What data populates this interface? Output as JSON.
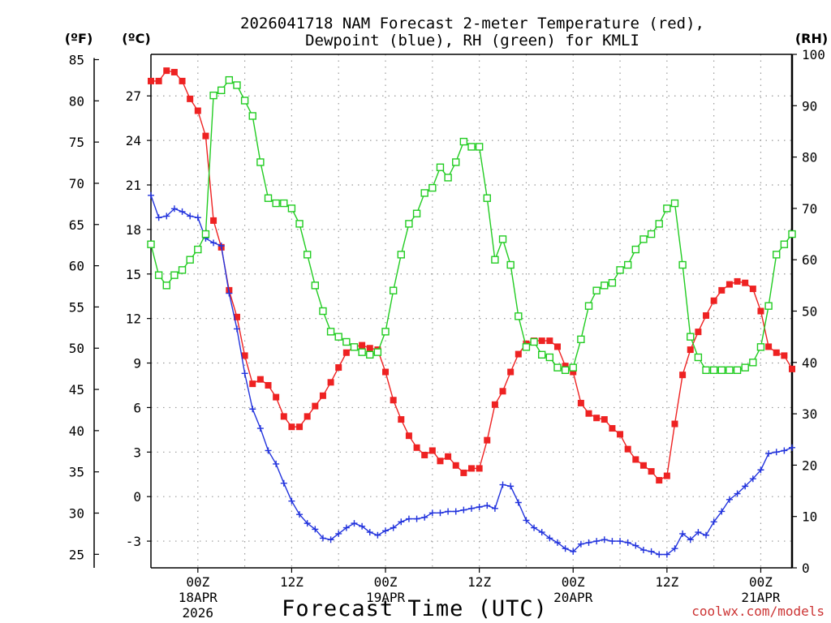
{
  "chart_data": {
    "type": "line",
    "title_line1": "2026041718 NAM Forecast 2-meter Temperature (red),",
    "title_line2": "Dewpoint (blue), RH (green) for KMLI",
    "xlabel": "Forecast Time (UTC)",
    "credit": "coolwx.com/models",
    "units": {
      "fahrenheit": "(ºF)",
      "celsius": "(ºC)",
      "rh": "(RH)"
    },
    "x_hours_range": [
      0,
      82
    ],
    "celsius_range": [
      -4.8,
      29.8
    ],
    "rh_range": [
      0,
      100
    ],
    "fahrenheit_ticks": [
      25,
      30,
      35,
      40,
      45,
      50,
      55,
      60,
      65,
      70,
      75,
      80,
      85
    ],
    "celsius_ticks": [
      -3,
      0,
      3,
      6,
      9,
      12,
      15,
      18,
      21,
      24,
      27
    ],
    "rh_ticks": [
      0,
      10,
      20,
      30,
      40,
      50,
      60,
      70,
      80,
      90,
      100
    ],
    "x_ticks": [
      {
        "hour": 6,
        "label": "00Z",
        "date": "18APR",
        "year": "2026"
      },
      {
        "hour": 18,
        "label": "12Z"
      },
      {
        "hour": 30,
        "label": "00Z",
        "date": "19APR"
      },
      {
        "hour": 42,
        "label": "12Z"
      },
      {
        "hour": 54,
        "label": "00Z",
        "date": "20APR"
      },
      {
        "hour": 66,
        "label": "12Z"
      },
      {
        "hour": 78,
        "label": "00Z",
        "date": "21APR"
      }
    ],
    "series": [
      {
        "name": "2-meter Temperature",
        "unit": "°C",
        "color": "#ee2222",
        "marker": "filled-square",
        "values": [
          [
            0,
            28.0
          ],
          [
            1,
            28.0
          ],
          [
            2,
            28.7
          ],
          [
            3,
            28.6
          ],
          [
            4,
            28.0
          ],
          [
            5,
            26.8
          ],
          [
            6,
            26.0
          ],
          [
            7,
            24.3
          ],
          [
            8,
            18.6
          ],
          [
            9,
            16.8
          ],
          [
            10,
            13.9
          ],
          [
            11,
            12.1
          ],
          [
            12,
            9.5
          ],
          [
            13,
            7.6
          ],
          [
            14,
            7.9
          ],
          [
            15,
            7.5
          ],
          [
            16,
            6.7
          ],
          [
            17,
            5.4
          ],
          [
            18,
            4.7
          ],
          [
            19,
            4.7
          ],
          [
            20,
            5.4
          ],
          [
            21,
            6.1
          ],
          [
            22,
            6.8
          ],
          [
            23,
            7.7
          ],
          [
            24,
            8.7
          ],
          [
            25,
            9.7
          ],
          [
            26,
            10.1
          ],
          [
            27,
            10.2
          ],
          [
            28,
            10.0
          ],
          [
            29,
            9.9
          ],
          [
            30,
            8.4
          ],
          [
            31,
            6.5
          ],
          [
            32,
            5.2
          ],
          [
            33,
            4.1
          ],
          [
            34,
            3.3
          ],
          [
            35,
            2.8
          ],
          [
            36,
            3.1
          ],
          [
            37,
            2.4
          ],
          [
            38,
            2.7
          ],
          [
            39,
            2.1
          ],
          [
            40,
            1.6
          ],
          [
            41,
            1.9
          ],
          [
            42,
            1.9
          ],
          [
            43,
            3.8
          ],
          [
            44,
            6.2
          ],
          [
            45,
            7.1
          ],
          [
            46,
            8.4
          ],
          [
            47,
            9.6
          ],
          [
            48,
            10.3
          ],
          [
            49,
            10.5
          ],
          [
            50,
            10.5
          ],
          [
            51,
            10.5
          ],
          [
            52,
            10.1
          ],
          [
            53,
            8.8
          ],
          [
            54,
            8.4
          ],
          [
            55,
            6.3
          ],
          [
            56,
            5.6
          ],
          [
            57,
            5.3
          ],
          [
            58,
            5.2
          ],
          [
            59,
            4.6
          ],
          [
            60,
            4.2
          ],
          [
            61,
            3.2
          ],
          [
            62,
            2.5
          ],
          [
            63,
            2.1
          ],
          [
            64,
            1.7
          ],
          [
            65,
            1.1
          ],
          [
            66,
            1.4
          ],
          [
            67,
            4.9
          ],
          [
            68,
            8.2
          ],
          [
            69,
            9.9
          ],
          [
            70,
            11.1
          ],
          [
            71,
            12.2
          ],
          [
            72,
            13.2
          ],
          [
            73,
            13.9
          ],
          [
            74,
            14.3
          ],
          [
            75,
            14.5
          ],
          [
            76,
            14.4
          ],
          [
            77,
            14.0
          ],
          [
            78,
            12.5
          ],
          [
            79,
            10.1
          ],
          [
            80,
            9.7
          ],
          [
            81,
            9.5
          ],
          [
            82,
            8.6
          ]
        ]
      },
      {
        "name": "Dewpoint",
        "unit": "°C",
        "color": "#2233dd",
        "marker": "plus",
        "values": [
          [
            0,
            20.3
          ],
          [
            1,
            18.8
          ],
          [
            2,
            18.9
          ],
          [
            3,
            19.4
          ],
          [
            4,
            19.2
          ],
          [
            5,
            18.9
          ],
          [
            6,
            18.8
          ],
          [
            7,
            17.4
          ],
          [
            8,
            17.1
          ],
          [
            9,
            16.9
          ],
          [
            10,
            13.7
          ],
          [
            11,
            11.3
          ],
          [
            12,
            8.3
          ],
          [
            13,
            5.9
          ],
          [
            14,
            4.6
          ],
          [
            15,
            3.1
          ],
          [
            16,
            2.2
          ],
          [
            17,
            0.9
          ],
          [
            18,
            -0.3
          ],
          [
            19,
            -1.2
          ],
          [
            20,
            -1.8
          ],
          [
            21,
            -2.2
          ],
          [
            22,
            -2.8
          ],
          [
            23,
            -2.9
          ],
          [
            24,
            -2.5
          ],
          [
            25,
            -2.1
          ],
          [
            26,
            -1.8
          ],
          [
            27,
            -2.0
          ],
          [
            28,
            -2.4
          ],
          [
            29,
            -2.6
          ],
          [
            30,
            -2.3
          ],
          [
            31,
            -2.1
          ],
          [
            32,
            -1.7
          ],
          [
            33,
            -1.5
          ],
          [
            34,
            -1.5
          ],
          [
            35,
            -1.4
          ],
          [
            36,
            -1.1
          ],
          [
            37,
            -1.1
          ],
          [
            38,
            -1.0
          ],
          [
            39,
            -1.0
          ],
          [
            40,
            -0.9
          ],
          [
            41,
            -0.8
          ],
          [
            42,
            -0.7
          ],
          [
            43,
            -0.6
          ],
          [
            44,
            -0.8
          ],
          [
            45,
            0.8
          ],
          [
            46,
            0.7
          ],
          [
            47,
            -0.4
          ],
          [
            48,
            -1.6
          ],
          [
            49,
            -2.1
          ],
          [
            50,
            -2.4
          ],
          [
            51,
            -2.8
          ],
          [
            52,
            -3.1
          ],
          [
            53,
            -3.5
          ],
          [
            54,
            -3.7
          ],
          [
            55,
            -3.2
          ],
          [
            56,
            -3.1
          ],
          [
            57,
            -3.0
          ],
          [
            58,
            -2.9
          ],
          [
            59,
            -3.0
          ],
          [
            60,
            -3.0
          ],
          [
            61,
            -3.1
          ],
          [
            62,
            -3.3
          ],
          [
            63,
            -3.6
          ],
          [
            64,
            -3.7
          ],
          [
            65,
            -3.9
          ],
          [
            66,
            -3.9
          ],
          [
            67,
            -3.5
          ],
          [
            68,
            -2.5
          ],
          [
            69,
            -2.9
          ],
          [
            70,
            -2.4
          ],
          [
            71,
            -2.6
          ],
          [
            72,
            -1.7
          ],
          [
            73,
            -1.0
          ],
          [
            74,
            -0.2
          ],
          [
            75,
            0.2
          ],
          [
            76,
            0.7
          ],
          [
            77,
            1.2
          ],
          [
            78,
            1.8
          ],
          [
            79,
            2.9
          ],
          [
            80,
            3.0
          ],
          [
            81,
            3.1
          ],
          [
            82,
            3.3
          ]
        ]
      },
      {
        "name": "Relative Humidity",
        "unit": "%",
        "color": "#22cc22",
        "marker": "open-square",
        "values": [
          [
            0,
            63
          ],
          [
            1,
            57
          ],
          [
            2,
            55
          ],
          [
            3,
            57
          ],
          [
            4,
            58
          ],
          [
            5,
            60
          ],
          [
            6,
            62
          ],
          [
            7,
            65
          ],
          [
            8,
            92
          ],
          [
            9,
            93
          ],
          [
            10,
            95
          ],
          [
            11,
            94
          ],
          [
            12,
            91
          ],
          [
            13,
            88
          ],
          [
            14,
            79
          ],
          [
            15,
            72
          ],
          [
            16,
            71
          ],
          [
            17,
            71
          ],
          [
            18,
            70
          ],
          [
            19,
            67
          ],
          [
            20,
            61
          ],
          [
            21,
            55
          ],
          [
            22,
            50
          ],
          [
            23,
            46
          ],
          [
            24,
            45
          ],
          [
            25,
            44
          ],
          [
            26,
            43
          ],
          [
            27,
            42
          ],
          [
            28,
            41.5
          ],
          [
            29,
            42
          ],
          [
            30,
            46
          ],
          [
            31,
            54
          ],
          [
            32,
            61
          ],
          [
            33,
            67
          ],
          [
            34,
            69
          ],
          [
            35,
            73
          ],
          [
            36,
            74
          ],
          [
            37,
            78
          ],
          [
            38,
            76
          ],
          [
            39,
            79
          ],
          [
            40,
            83
          ],
          [
            41,
            82
          ],
          [
            42,
            82
          ],
          [
            43,
            72
          ],
          [
            44,
            60
          ],
          [
            45,
            64
          ],
          [
            46,
            59
          ],
          [
            47,
            49
          ],
          [
            48,
            43
          ],
          [
            49,
            44
          ],
          [
            50,
            41.5
          ],
          [
            51,
            41
          ],
          [
            52,
            39
          ],
          [
            53,
            38.5
          ],
          [
            54,
            39
          ],
          [
            55,
            44.5
          ],
          [
            56,
            51
          ],
          [
            57,
            54
          ],
          [
            58,
            55
          ],
          [
            59,
            55.5
          ],
          [
            60,
            58
          ],
          [
            61,
            59
          ],
          [
            62,
            62
          ],
          [
            63,
            64
          ],
          [
            64,
            65
          ],
          [
            65,
            67
          ],
          [
            66,
            70
          ],
          [
            67,
            71
          ],
          [
            68,
            59
          ],
          [
            69,
            45
          ],
          [
            70,
            41
          ],
          [
            71,
            38.5
          ],
          [
            72,
            38.5
          ],
          [
            73,
            38.5
          ],
          [
            74,
            38.5
          ],
          [
            75,
            38.5
          ],
          [
            76,
            39
          ],
          [
            77,
            40
          ],
          [
            78,
            43
          ],
          [
            79,
            51
          ],
          [
            80,
            61
          ],
          [
            81,
            63
          ],
          [
            82,
            65
          ]
        ]
      }
    ]
  },
  "colors": {
    "temperature": "#ee2222",
    "dewpoint": "#2233dd",
    "rh": "#22cc22",
    "grid": "#9a9a9a",
    "credit": "#cc3333"
  }
}
